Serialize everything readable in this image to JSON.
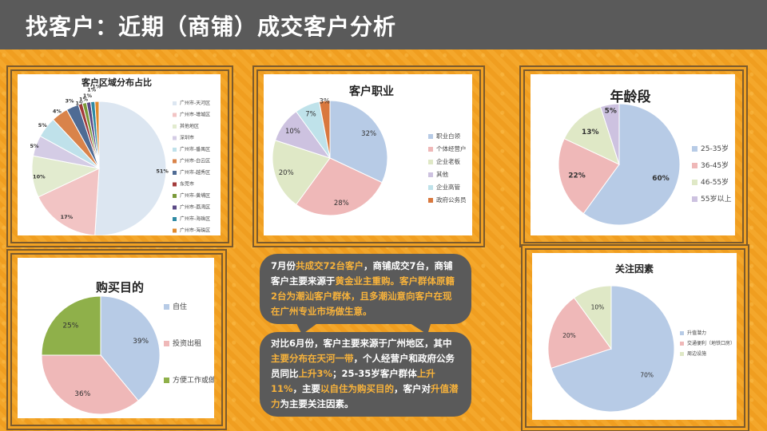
{
  "title": "找客户：近期（商铺）成交客户分析",
  "colors": {
    "titlebar": "#5a5a5a",
    "accent": "#f3a425",
    "highlight": "#f7b23b"
  },
  "charts": {
    "region": {
      "title": "客户区域分布占比",
      "slices": [
        {
          "label": "广州市-天河区",
          "value": 51,
          "color": "#dce6f1"
        },
        {
          "label": "广州市-增城区",
          "value": 17,
          "color": "#f2c4c4"
        },
        {
          "label": "其他地区",
          "value": 10,
          "color": "#e2ebcf"
        },
        {
          "label": "深圳市",
          "value": 5,
          "color": "#d4cce5"
        },
        {
          "label": "广州市-番禺区",
          "value": 5,
          "color": "#bfe1ea"
        },
        {
          "label": "广州市-白云区",
          "value": 4,
          "color": "#d9834a"
        },
        {
          "label": "广州市-越秀区",
          "value": 3,
          "color": "#4f6b94"
        },
        {
          "label": "东莞市",
          "value": 1,
          "color": "#a33b3b"
        },
        {
          "label": "广州市-黄埔区",
          "value": 1,
          "color": "#7a9a3a"
        },
        {
          "label": "广州市-荔湾区",
          "value": 1,
          "color": "#5b4a86"
        },
        {
          "label": "广州市-海珠区",
          "value": 1,
          "color": "#2f8aa3"
        },
        {
          "label": "广州市-海珠区",
          "value": 1,
          "color": "#e08a2e"
        }
      ],
      "pct_labels": [
        "51%",
        "17%",
        "10%",
        "5%",
        "5%",
        "4%",
        "3%",
        "1%",
        "1%",
        "1%",
        "1%",
        "1%"
      ]
    },
    "job": {
      "title": "客户职业",
      "slices": [
        {
          "label": "职业白领",
          "value": 32,
          "color": "#b7cbe6"
        },
        {
          "label": "个体经营户",
          "value": 28,
          "color": "#efb8b8"
        },
        {
          "label": "企业老板",
          "value": 20,
          "color": "#dfe8c6"
        },
        {
          "label": "其他",
          "value": 10,
          "color": "#cdc2e0"
        },
        {
          "label": "企业高管",
          "value": 7,
          "color": "#bfe2ea"
        },
        {
          "label": "政府公务员",
          "value": 3,
          "color": "#d9783e"
        }
      ],
      "pct_labels": [
        "32%",
        "28%",
        "20%",
        "10%",
        "7%",
        "3%"
      ]
    },
    "age": {
      "title": "年龄段",
      "slices": [
        {
          "label": "25-35岁",
          "value": 60,
          "color": "#b7cbe6"
        },
        {
          "label": "36-45岁",
          "value": 22,
          "color": "#efb8b8"
        },
        {
          "label": "46-55岁",
          "value": 13,
          "color": "#dfe8c6"
        },
        {
          "label": "55岁以上",
          "value": 5,
          "color": "#cdc2e0"
        }
      ],
      "pct_labels": [
        "60%",
        "22%",
        "13%",
        "5%"
      ]
    },
    "purpose": {
      "title": "购买目的",
      "slices": [
        {
          "label": "自住",
          "value": 39,
          "color": "#b7cbe6"
        },
        {
          "label": "投资出租",
          "value": 36,
          "color": "#efb8b8"
        },
        {
          "label": "方便工作或做生意",
          "value": 25,
          "color": "#8fb04a"
        }
      ],
      "pct_labels": [
        "39%",
        "36%",
        "25%"
      ]
    },
    "focus": {
      "title": "关注因素",
      "slices": [
        {
          "label": "升值潜力",
          "value": 70,
          "color": "#b7cbe6"
        },
        {
          "label": "交通便利（地铁口房）",
          "value": 20,
          "color": "#efb8b8"
        },
        {
          "label": "周边设施",
          "value": 10,
          "color": "#dfe8c6"
        }
      ],
      "pct_labels": [
        "70%",
        "20%",
        "10%"
      ]
    }
  },
  "bubble1": {
    "p1": "7月份",
    "p2": "共成交72台客户",
    "p3": "，商铺成交7台，商铺客户主要来源于",
    "p4": "黄金业主重购。客户群体原籍2台为潮汕客户群体，且多潮汕意向客户在现在广州专业市场做生意。"
  },
  "bubble2": {
    "p1": "对比6月份，客户主要来源于广州地区，其中",
    "p2": "主要分布在天河一带",
    "p3": "，个人经营户和政府公务员同比",
    "p4": "上升3%",
    "p5": "；25-35岁客户群体",
    "p6": "上升11%",
    "p7": "，主要",
    "p8": "以自住为购买目的",
    "p9": "，客户对",
    "p10": "升值潜力",
    "p11": "为主要关注因素。"
  }
}
